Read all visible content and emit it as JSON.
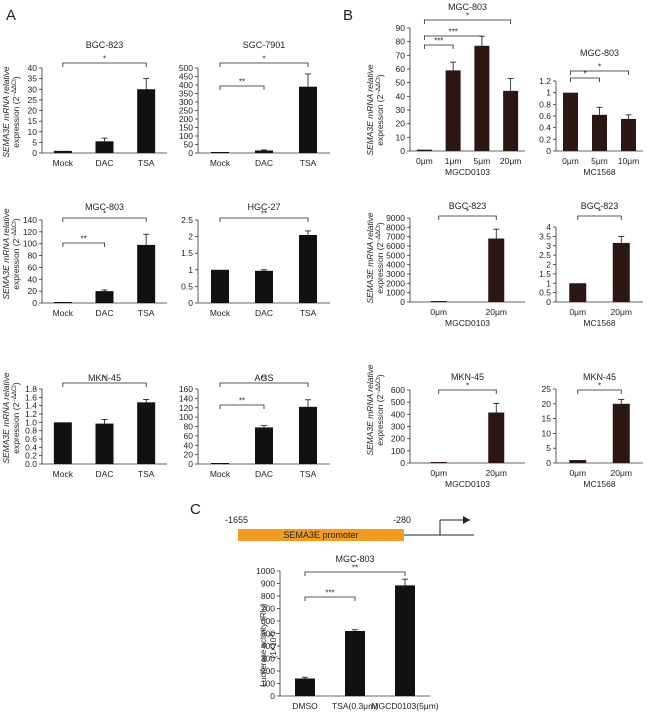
{
  "panel_labels": {
    "a": "A",
    "b": "B",
    "c": "C"
  },
  "ylabel_main": "SEMA3E mRNA relative",
  "ylabel_sub": "expression (2",
  "ylabel_sup": "−ΔΔCt",
  "ylabel_close": ")",
  "promoter": {
    "start_label": "-1655",
    "box_label": "SEMA3E promoter",
    "end_label": "-280"
  },
  "luc_ylabel": "Luciferase activity (Rlu)",
  "luc_ylabel_unit": "(1×10",
  "luc_ylabel_sup": "3",
  "luc_ylabel_close": ")",
  "colors": {
    "bar": "#111111",
    "bar_b": "#2b1612",
    "promoter_box": "#f39c1e"
  },
  "chart_data": [
    {
      "id": "A1",
      "type": "bar",
      "title": "BGC-823",
      "categories": [
        "Mock",
        "DAC",
        "TSA"
      ],
      "values": [
        1,
        5.5,
        30
      ],
      "errors": [
        0,
        1.5,
        5
      ],
      "ylim": [
        0,
        40
      ],
      "ticks": [
        0,
        5,
        10,
        15,
        20,
        25,
        30,
        35,
        40
      ],
      "sig": [
        {
          "from": 0,
          "to": 2,
          "label": "*"
        }
      ],
      "xlabel": ""
    },
    {
      "id": "A2",
      "type": "bar",
      "title": "SGC-7901",
      "categories": [
        "Mock",
        "DAC",
        "TSA"
      ],
      "values": [
        1,
        15,
        390
      ],
      "errors": [
        0,
        3,
        75
      ],
      "ylim": [
        0,
        500
      ],
      "ticks": [
        0,
        50,
        100,
        150,
        200,
        250,
        300,
        350,
        400,
        450,
        500
      ],
      "sig": [
        {
          "from": 0,
          "to": 1,
          "label": "**"
        },
        {
          "from": 0,
          "to": 2,
          "label": "*"
        }
      ],
      "xlabel": ""
    },
    {
      "id": "A3",
      "type": "bar",
      "title": "MGC-803",
      "categories": [
        "Mock",
        "DAC",
        "TSA"
      ],
      "values": [
        1,
        20,
        98
      ],
      "errors": [
        0,
        2,
        18
      ],
      "ylim": [
        0,
        140
      ],
      "ticks": [
        0,
        20,
        40,
        60,
        80,
        100,
        120,
        140
      ],
      "sig": [
        {
          "from": 0,
          "to": 1,
          "label": "**"
        },
        {
          "from": 0,
          "to": 2,
          "label": "*"
        }
      ],
      "xlabel": ""
    },
    {
      "id": "A4",
      "type": "bar",
      "title": "HGC-27",
      "categories": [
        "Mock",
        "DAC",
        "TSA"
      ],
      "values": [
        1,
        0.97,
        2.05
      ],
      "errors": [
        0,
        0.03,
        0.12
      ],
      "ylim": [
        0,
        2.5
      ],
      "ticks": [
        0,
        0.5,
        1,
        1.5,
        2,
        2.5
      ],
      "sig": [
        {
          "from": 0,
          "to": 2,
          "label": "**"
        }
      ],
      "xlabel": ""
    },
    {
      "id": "A5",
      "type": "bar",
      "title": "MKN-45",
      "categories": [
        "Mock",
        "DAC",
        "TSA"
      ],
      "values": [
        1,
        0.97,
        1.48
      ],
      "errors": [
        0,
        0.1,
        0.07
      ],
      "ylim": [
        0,
        1.8
      ],
      "ticks": [
        0,
        0.2,
        0.4,
        0.6,
        0.8,
        1.0,
        1.2,
        1.4,
        1.6,
        1.8
      ],
      "tick_decimals": 1,
      "sig": [
        {
          "from": 0,
          "to": 2,
          "label": "*"
        }
      ],
      "xlabel": ""
    },
    {
      "id": "A6",
      "type": "bar",
      "title": "AGS",
      "categories": [
        "Mock",
        "DAC",
        "TSA"
      ],
      "values": [
        1,
        78,
        122
      ],
      "errors": [
        0,
        4,
        15
      ],
      "ylim": [
        0,
        160
      ],
      "ticks": [
        0,
        20,
        40,
        60,
        80,
        100,
        120,
        140,
        160
      ],
      "sig": [
        {
          "from": 0,
          "to": 1,
          "label": "**"
        },
        {
          "from": 0,
          "to": 2,
          "label": "**"
        }
      ],
      "xlabel": ""
    },
    {
      "id": "B1",
      "type": "bar",
      "title": "MGC-803",
      "categories": [
        "0μm",
        "1μm",
        "5μm",
        "20μm"
      ],
      "values": [
        1,
        59,
        77,
        44
      ],
      "errors": [
        0,
        6,
        7,
        9
      ],
      "ylim": [
        0,
        90
      ],
      "ticks": [
        0,
        10,
        20,
        30,
        40,
        50,
        60,
        70,
        80,
        90
      ],
      "sig": [
        {
          "from": 0,
          "to": 1,
          "label": "***"
        },
        {
          "from": 0,
          "to": 2,
          "label": "***"
        },
        {
          "from": 0,
          "to": 3,
          "label": "*"
        }
      ],
      "xlabel": "MGCD0103"
    },
    {
      "id": "B2",
      "type": "bar",
      "title": "MGC-803",
      "categories": [
        "0μm",
        "5μm",
        "10μm"
      ],
      "values": [
        1,
        0.62,
        0.55
      ],
      "errors": [
        0,
        0.13,
        0.07
      ],
      "ylim": [
        0,
        1.2
      ],
      "ticks": [
        0,
        0.2,
        0.4,
        0.6,
        0.8,
        1,
        1.2
      ],
      "sig": [
        {
          "from": 0,
          "to": 1,
          "label": "*"
        },
        {
          "from": 0,
          "to": 2,
          "label": "*"
        }
      ],
      "xlabel": "MC1568"
    },
    {
      "id": "B3",
      "type": "bar",
      "title": "BGC-823",
      "categories": [
        "0μm",
        "20μm"
      ],
      "values": [
        1,
        6800
      ],
      "errors": [
        0,
        1000
      ],
      "ylim": [
        0,
        9000
      ],
      "ticks": [
        0,
        1000,
        2000,
        3000,
        4000,
        5000,
        6000,
        7000,
        8000,
        9000
      ],
      "sig": [
        {
          "from": 0,
          "to": 1,
          "label": "*"
        }
      ],
      "xlabel": "MGCD0103"
    },
    {
      "id": "B4",
      "type": "bar",
      "title": "BGC-823",
      "categories": [
        "0μm",
        "20μm"
      ],
      "values": [
        1,
        3.15
      ],
      "errors": [
        0,
        0.35
      ],
      "ylim": [
        0,
        4
      ],
      "ticks": [
        0,
        0.5,
        1,
        1.5,
        2,
        2.5,
        3,
        3.5,
        4
      ],
      "sig": [
        {
          "from": 0,
          "to": 1,
          "label": "*"
        }
      ],
      "xlabel": "MC1568"
    },
    {
      "id": "B5",
      "type": "bar",
      "title": "MKN-45",
      "categories": [
        "0μm",
        "20μm"
      ],
      "values": [
        1,
        415
      ],
      "errors": [
        0,
        75
      ],
      "ylim": [
        0,
        600
      ],
      "ticks": [
        0,
        100,
        200,
        300,
        400,
        500,
        600
      ],
      "sig": [
        {
          "from": 0,
          "to": 1,
          "label": "*"
        }
      ],
      "xlabel": "MGCD0103"
    },
    {
      "id": "B6",
      "type": "bar",
      "title": "MKN-45",
      "categories": [
        "0μm",
        "20μm"
      ],
      "values": [
        1,
        20
      ],
      "errors": [
        0,
        1.5
      ],
      "ylim": [
        0,
        25
      ],
      "ticks": [
        0,
        5,
        10,
        15,
        20,
        25
      ],
      "sig": [
        {
          "from": 0,
          "to": 1,
          "label": "*"
        }
      ],
      "xlabel": "MC1568"
    },
    {
      "id": "C1",
      "type": "bar",
      "title": "MGC-803",
      "categories": [
        "DMSO",
        "TSA(0.3μm)",
        "MGCD0103(5μm)"
      ],
      "values": [
        140,
        520,
        885
      ],
      "errors": [
        10,
        10,
        50
      ],
      "ylim": [
        0,
        1000
      ],
      "ticks": [
        0,
        100,
        200,
        300,
        400,
        500,
        600,
        700,
        800,
        900,
        1000
      ],
      "sig": [
        {
          "from": 0,
          "to": 1,
          "label": "***"
        },
        {
          "from": 0,
          "to": 2,
          "label": "**"
        }
      ],
      "xlabel": ""
    }
  ]
}
